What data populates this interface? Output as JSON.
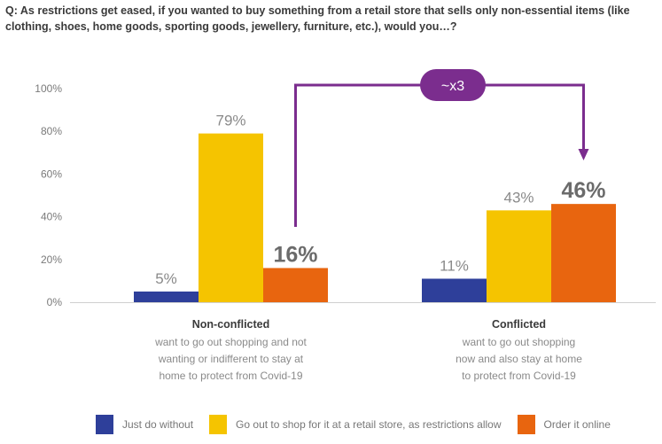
{
  "question": "Q: As restrictions get eased, if you wanted to buy something from a retail store that sells only non-essential items (like clothing, shoes, home goods, sporting goods, jewellery, furniture, etc.), would you…?",
  "chart_data": {
    "type": "bar",
    "title": "Q: As restrictions get eased, if you wanted to buy something from a retail store that sells only non-essential items (like clothing, shoes, home goods, sporting goods, jewellery, furniture, etc.), would you…?",
    "categories": [
      "Non-conflicted",
      "Conflicted"
    ],
    "category_descriptions": [
      [
        "want to go out shopping and not",
        "wanting or indifferent to stay at",
        "home to protect from Covid-19"
      ],
      [
        "want to go out shopping",
        "now and also stay at home",
        "to protect from Covid-19"
      ]
    ],
    "series": [
      {
        "name": "Just do without",
        "values": [
          5,
          11
        ],
        "labels": [
          "5%",
          "11%"
        ],
        "color": "#2e3f9a"
      },
      {
        "name": "Go out to shop for it at a retail store, as restrictions allow",
        "values": [
          79,
          43
        ],
        "labels": [
          "79%",
          "43%"
        ],
        "color": "#f5c400"
      },
      {
        "name": "Order it online",
        "values": [
          16,
          46
        ],
        "labels": [
          "16%",
          "46%"
        ],
        "color": "#e8650f"
      }
    ],
    "highlight_series": "Order it online",
    "ylim": [
      0,
      100
    ],
    "yticks": [
      0,
      20,
      40,
      60,
      80,
      100
    ],
    "ytick_labels": [
      "0%",
      "20%",
      "40%",
      "60%",
      "80%",
      "100%"
    ],
    "xlabel": "",
    "ylabel": "",
    "grid": false,
    "legend_position": "bottom",
    "annotation": {
      "text": "~x3",
      "from_series": "Order it online",
      "from": "Non-conflicted",
      "to": "Conflicted",
      "color": "#7b2d8e"
    }
  }
}
